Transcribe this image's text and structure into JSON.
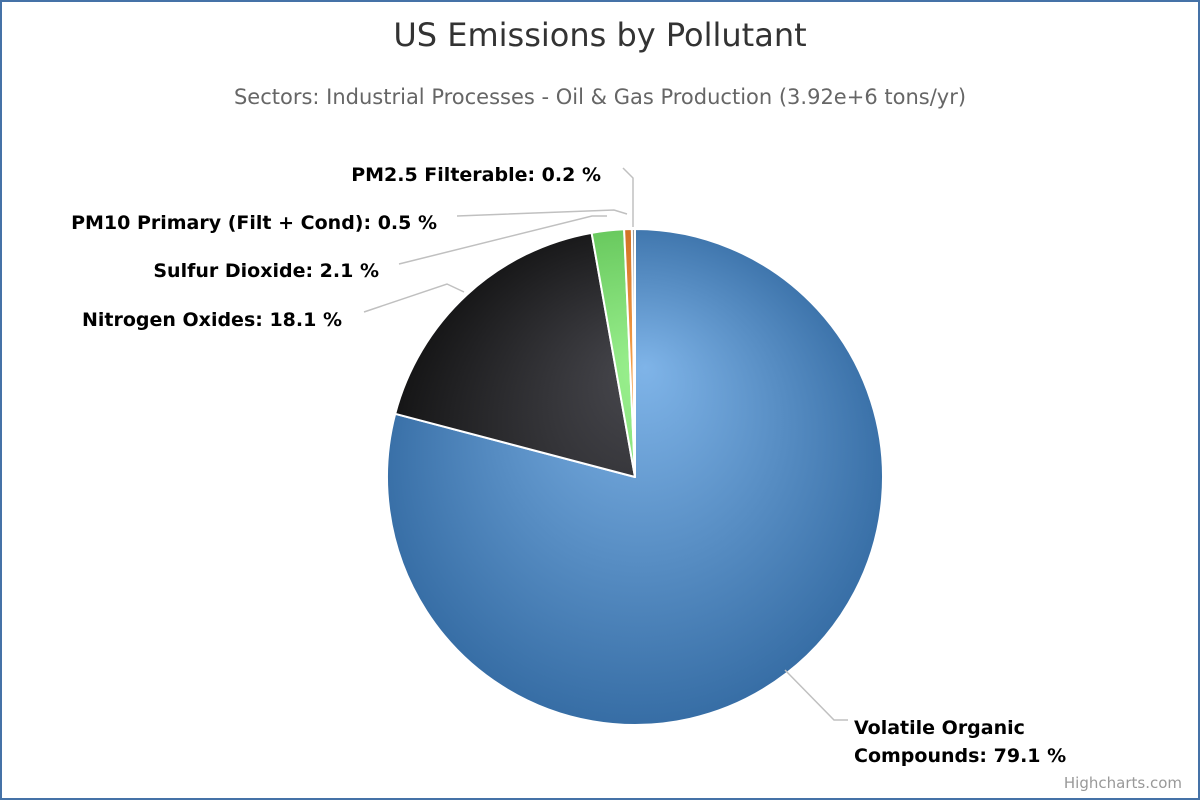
{
  "chart_data": {
    "type": "pie",
    "title": "US Emissions by Pollutant",
    "subtitle": "Sectors: Industrial Processes - Oil & Gas Production (3.92e+6 tons/yr)",
    "slices": [
      {
        "name": "Volatile Organic Compounds",
        "value": 79.1,
        "label": "Volatile Organic Compounds: 79.1 %",
        "color": "#4572a7"
      },
      {
        "name": "Nitrogen Oxides",
        "value": 18.1,
        "label": "Nitrogen Oxides: 18.1 %",
        "color": "#222222"
      },
      {
        "name": "Sulfur Dioxide",
        "value": 2.1,
        "label": "Sulfur Dioxide: 2.1 %",
        "color": "#77d56b"
      },
      {
        "name": "PM10 Primary (Filt + Cond)",
        "value": 0.5,
        "label": "PM10 Primary (Filt + Cond): 0.5 %",
        "color": "#e8812a"
      },
      {
        "name": "PM2.5 Filterable",
        "value": 0.2,
        "label": "PM2.5 Filterable: 0.2 %",
        "color": "#a0a0a0"
      }
    ]
  },
  "credits": "Highcharts.com"
}
